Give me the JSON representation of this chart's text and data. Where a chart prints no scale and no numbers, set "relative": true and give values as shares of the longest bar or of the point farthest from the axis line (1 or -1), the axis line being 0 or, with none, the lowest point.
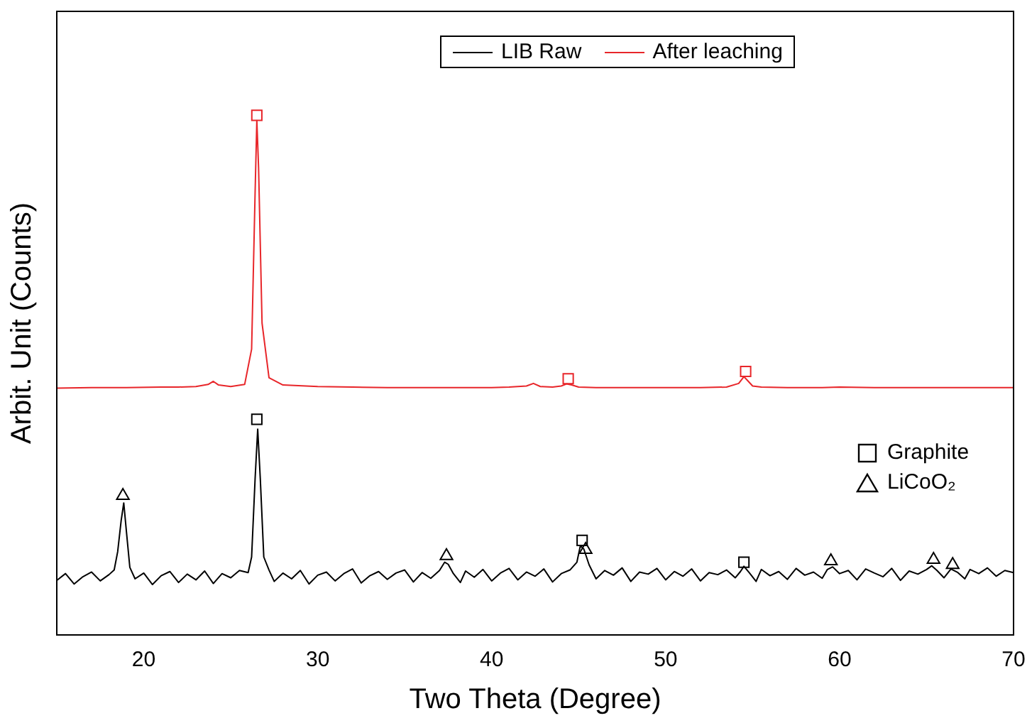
{
  "chart_data": {
    "type": "line",
    "xlabel": "Two Theta (Degree)",
    "ylabel": "Arbit. Unit (Counts)",
    "relative": true,
    "xlim": [
      15,
      70
    ],
    "xticks": [
      20,
      30,
      40,
      50,
      60,
      70
    ],
    "grid": false,
    "legend": "top right",
    "series": [
      {
        "name": "LIB Raw",
        "color": "#000000",
        "marker": "none",
        "x": [
          15,
          15.5,
          16,
          16.5,
          17,
          17.5,
          18,
          18.3,
          18.5,
          18.7,
          18.85,
          19,
          19.2,
          19.5,
          20,
          20.5,
          21,
          21.5,
          22,
          22.5,
          23,
          23.5,
          24,
          24.5,
          25,
          25.5,
          26,
          26.2,
          26.4,
          26.55,
          26.7,
          26.9,
          27.2,
          27.5,
          28,
          28.5,
          29,
          29.5,
          30,
          30.5,
          31,
          31.5,
          32,
          32.5,
          33,
          33.5,
          34,
          34.5,
          35,
          35.5,
          36,
          36.5,
          37,
          37.3,
          37.5,
          37.8,
          38.2,
          38.5,
          39,
          39.5,
          40,
          40.5,
          41,
          41.5,
          42,
          42.5,
          43,
          43.5,
          44,
          44.5,
          44.9,
          45.1,
          45.3,
          45.6,
          46,
          46.5,
          47,
          47.5,
          48,
          48.5,
          49,
          49.5,
          50,
          50.5,
          51,
          51.5,
          52,
          52.5,
          53,
          53.5,
          54,
          54.3,
          54.5,
          54.8,
          55.2,
          55.5,
          56,
          56.5,
          57,
          57.5,
          58,
          58.5,
          59,
          59.3,
          59.6,
          60,
          60.5,
          61,
          61.5,
          62,
          62.5,
          63,
          63.5,
          64,
          64.5,
          65,
          65.3,
          65.6,
          66,
          66.4,
          66.8,
          67.2,
          67.5,
          68,
          68.5,
          69,
          69.5,
          70
        ],
        "values": [
          0.105,
          0.118,
          0.098,
          0.112,
          0.121,
          0.104,
          0.116,
          0.125,
          0.16,
          0.22,
          0.254,
          0.2,
          0.13,
          0.108,
          0.119,
          0.097,
          0.114,
          0.122,
          0.101,
          0.117,
          0.106,
          0.123,
          0.099,
          0.118,
          0.11,
          0.124,
          0.12,
          0.15,
          0.3,
          0.396,
          0.3,
          0.15,
          0.125,
          0.103,
          0.119,
          0.108,
          0.124,
          0.098,
          0.115,
          0.121,
          0.104,
          0.118,
          0.127,
          0.1,
          0.114,
          0.122,
          0.107,
          0.119,
          0.125,
          0.102,
          0.12,
          0.109,
          0.124,
          0.14,
          0.136,
          0.118,
          0.101,
          0.123,
          0.111,
          0.126,
          0.104,
          0.119,
          0.128,
          0.106,
          0.121,
          0.113,
          0.127,
          0.102,
          0.118,
          0.125,
          0.14,
          0.172,
          0.165,
          0.135,
          0.108,
          0.124,
          0.115,
          0.129,
          0.103,
          0.121,
          0.117,
          0.128,
          0.106,
          0.122,
          0.113,
          0.127,
          0.104,
          0.12,
          0.116,
          0.125,
          0.11,
          0.122,
          0.132,
          0.12,
          0.103,
          0.126,
          0.114,
          0.122,
          0.107,
          0.128,
          0.115,
          0.121,
          0.109,
          0.126,
          0.131,
          0.118,
          0.124,
          0.106,
          0.127,
          0.119,
          0.112,
          0.128,
          0.105,
          0.123,
          0.117,
          0.126,
          0.133,
          0.124,
          0.11,
          0.127,
          0.12,
          0.108,
          0.126,
          0.118,
          0.129,
          0.113,
          0.124,
          0.12
        ]
      },
      {
        "name": "After leaching",
        "color": "#e8262a",
        "marker": "none",
        "x": [
          15,
          17,
          19,
          21,
          22,
          23,
          23.7,
          24,
          24.3,
          25,
          25.8,
          26.2,
          26.4,
          26.5,
          26.6,
          26.8,
          27.2,
          28,
          30,
          32,
          34,
          36,
          38,
          40,
          41,
          42,
          42.4,
          42.8,
          43.5,
          44,
          44.3,
          44.6,
          45,
          46,
          48,
          50,
          52,
          53.5,
          54.2,
          54.5,
          54.7,
          55,
          55.5,
          57,
          59,
          60,
          62,
          64,
          66,
          68,
          70
        ],
        "values": [
          0.475,
          0.476,
          0.476,
          0.477,
          0.477,
          0.478,
          0.482,
          0.488,
          0.481,
          0.478,
          0.482,
          0.55,
          0.85,
          0.99,
          0.9,
          0.6,
          0.495,
          0.481,
          0.478,
          0.477,
          0.476,
          0.476,
          0.476,
          0.476,
          0.477,
          0.479,
          0.484,
          0.478,
          0.477,
          0.479,
          0.483,
          0.481,
          0.477,
          0.476,
          0.476,
          0.476,
          0.476,
          0.477,
          0.484,
          0.497,
          0.49,
          0.479,
          0.477,
          0.476,
          0.476,
          0.477,
          0.476,
          0.476,
          0.476,
          0.476,
          0.476
        ]
      },
      {
        "name": "Graphite",
        "type": "scatter",
        "color": "#000000",
        "marker": "square",
        "x": [
          26.5,
          44.4,
          54.6,
          26.5,
          45.2,
          54.5
        ],
        "values": [
          1,
          0.493,
          0.507,
          0.415,
          0.182,
          0.14
        ],
        "colors": [
          "#e8262a",
          "#e8262a",
          "#e8262a",
          "#000000",
          "#000000",
          "#000000"
        ]
      },
      {
        "name": "LiCoO₂",
        "type": "scatter",
        "color": "#000000",
        "marker": "triangle",
        "x": [
          18.8,
          37.4,
          45.4,
          59.5,
          65.4,
          66.5
        ],
        "values": [
          0.268,
          0.152,
          0.164,
          0.142,
          0.145,
          0.135
        ]
      }
    ]
  }
}
